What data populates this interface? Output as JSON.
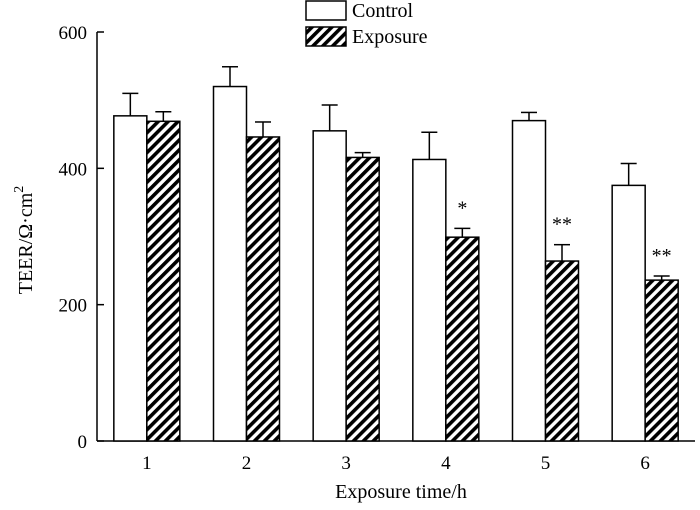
{
  "chart_data": {
    "type": "bar",
    "categories": [
      "1",
      "2",
      "3",
      "4",
      "5",
      "6"
    ],
    "series": [
      {
        "name": "Control",
        "style": "white",
        "values": [
          477,
          520,
          455,
          413,
          470,
          375
        ],
        "errors": [
          33,
          29,
          38,
          40,
          12,
          32
        ]
      },
      {
        "name": "Exposure",
        "style": "hatched",
        "values": [
          469,
          446,
          416,
          299,
          264,
          236
        ],
        "errors": [
          14,
          22,
          7,
          13,
          24,
          6
        ]
      }
    ],
    "significance": [
      "",
      "",
      "",
      "*",
      "**",
      "**"
    ],
    "xlabel": "Exposure time/h",
    "ylabel": "TEER/Ω·cm",
    "ylabel_superscript": "2",
    "ylim": [
      0,
      600
    ],
    "yticks": [
      0,
      200,
      400,
      600
    ],
    "grid": false,
    "legend_position": "top-center",
    "colors": {
      "bar_fill": "#ffffff",
      "stroke": "#000000"
    }
  }
}
